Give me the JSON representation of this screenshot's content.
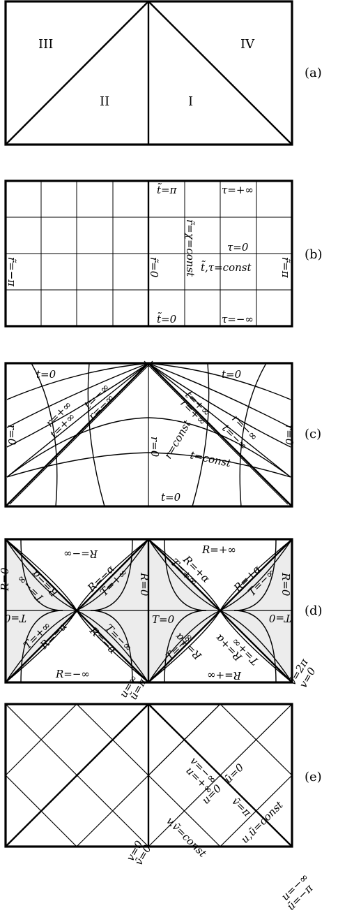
{
  "a": {
    "tag": "(a)",
    "regions": [
      "III",
      "II",
      "I",
      "IV"
    ]
  },
  "b": {
    "tag": "(b)",
    "labels": {
      "t_pi": "t̃=π",
      "tau_pinf": "τ=+∞",
      "chi_const": "r̃=χ=const",
      "tau_zero": "τ=0",
      "r_minus_pi": "r̃=−π",
      "r_zero": "r̃=0",
      "t_tau_const": "t̃,τ=const",
      "r_pi": "r̃=π",
      "t_zero": "t̃=0",
      "tau_minf": "τ=−∞"
    }
  },
  "c": {
    "tag": "(c)",
    "labels": {
      "t0_left": "t=0",
      "t0_right": "t=0",
      "r0_left": "r=0",
      "r0_right": "r=0",
      "r0_mid": "r=0",
      "t_pinf_l": "t=+∞",
      "r_pinf_l": "r=+∞",
      "t_minf_l": "t=−∞",
      "r_minf_l": "r=−∞",
      "t_pinf_r": "t=+∞",
      "r_pinf_r": "r=+∞",
      "r_minf_r": "r=−∞",
      "t_minf_r": "t=−∞",
      "r_const": "r=const",
      "t_const": "t=const",
      "t0_bottom": "t=0"
    }
  },
  "d": {
    "tag": "(d)",
    "labels": {
      "R_minf_top": "R=−∞",
      "R_pinf_top": "R=+∞",
      "T_minf_a": "T=−∞",
      "R_ma_a": "R=−α",
      "R_ma_b": "R=−α",
      "T_pinf_a": "T=+∞",
      "R_pa_a": "R=+α",
      "T_pinf_b": "T=+∞",
      "R_pa_b": "R=+α",
      "T_minf_b": "T=−∞",
      "R0_left": "R=0",
      "R0_mid": "R=0",
      "R0_right": "R=0",
      "T0_left": "T=0",
      "T0_mid": "T=0",
      "T0_right": "T=0",
      "T_pinf_c": "T=+∞",
      "R_ma_c": "R=−α",
      "R_ma_d": "R=−α",
      "T_minf_c": "T=−∞",
      "T_minf_d": "T=−∞",
      "R_pa_c": "R=+α",
      "R_pa_d": "R=+α",
      "T_pinf_d": "T=+∞",
      "R_minf_bot": "R=−∞",
      "R_pinf_bot": "R=+∞"
    }
  },
  "e": {
    "tag": "(e)",
    "labels": {
      "u_inf_top": "u=∞",
      "ut_pi_top": "ũ=π",
      "vt_2pi": "ṽ=2π",
      "v_zero_tr": "v=0",
      "v_minf": "v=−∞",
      "u_pinf": "u=+∞",
      "ut_zero": "ũ=0",
      "u_zero": "u=0",
      "vt_pi": "ṽ=π",
      "uv_const": "u,ũ=const",
      "vvt_const": "v,ṽ=const",
      "v_zero_b": "v=0",
      "vt_zero_b": "ṽ=0",
      "u_minf_b": "u=−∞",
      "ut_mpi_b": "ũ=−π"
    }
  }
}
